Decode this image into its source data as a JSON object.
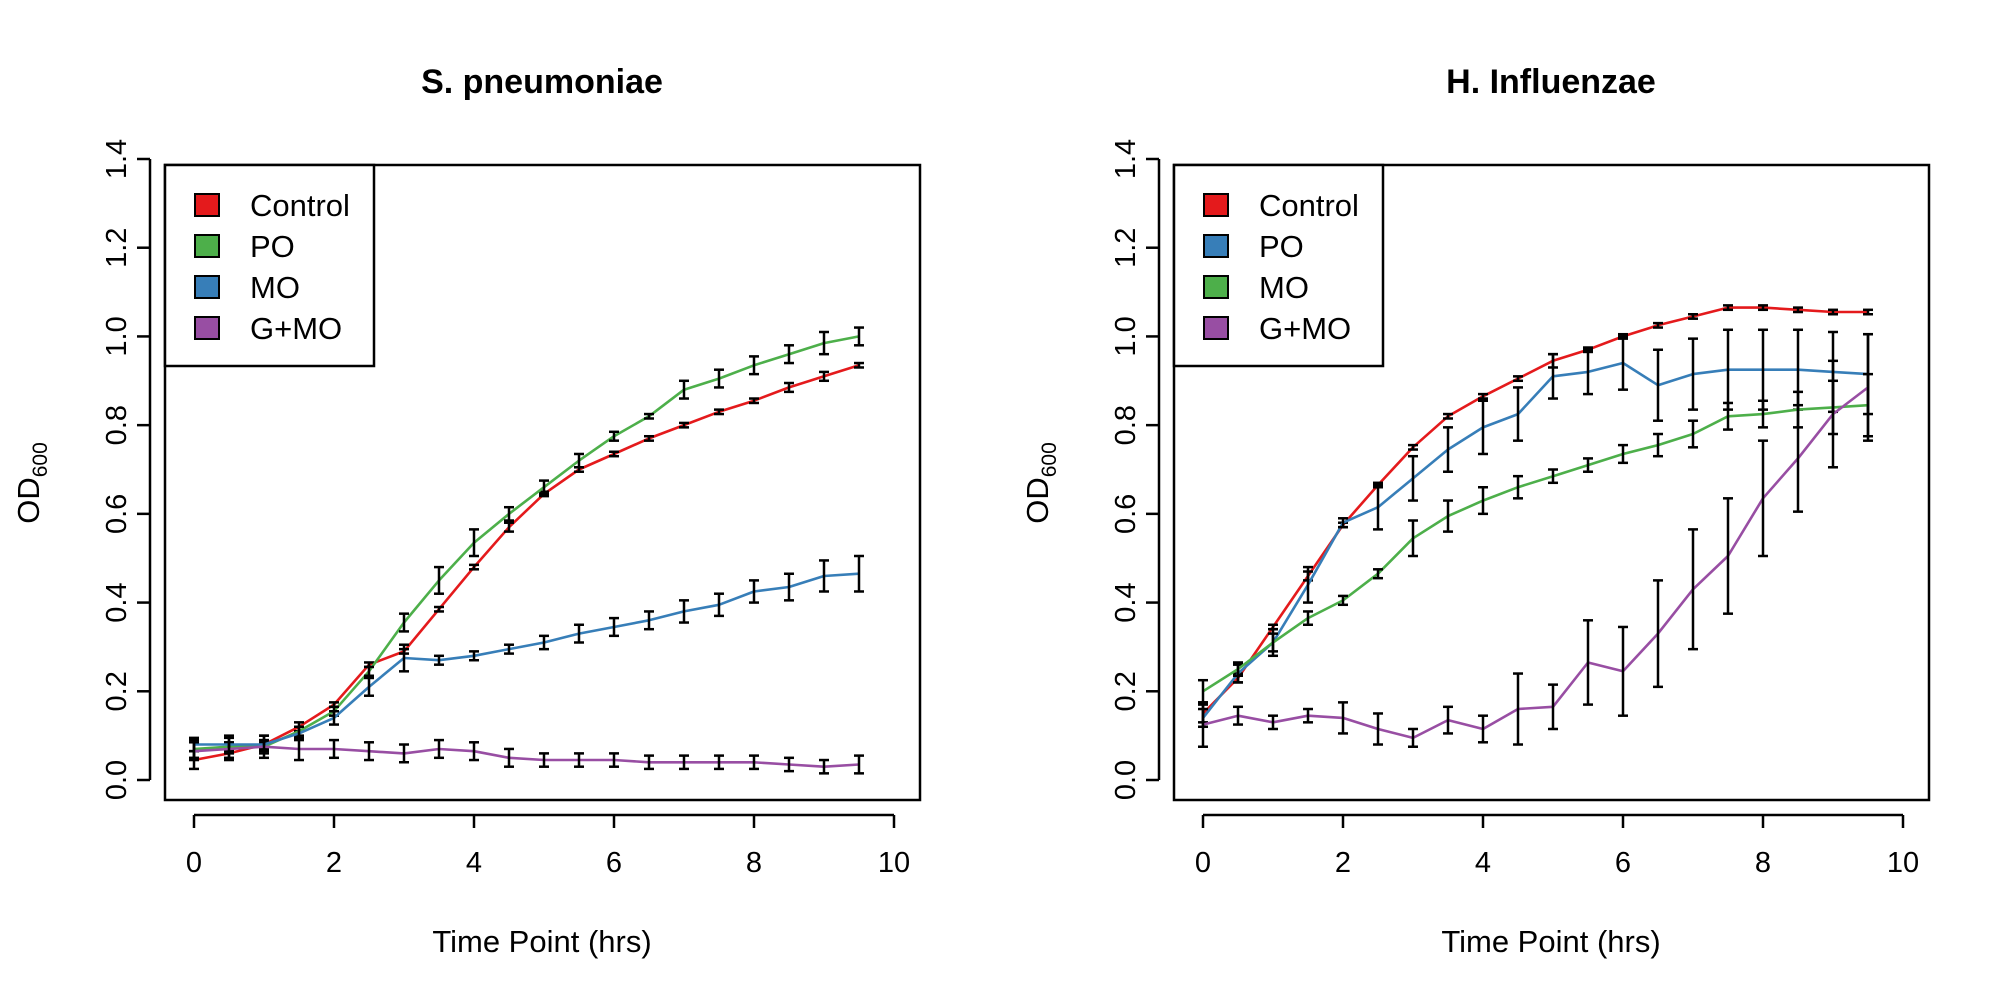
{
  "chart_data": [
    {
      "type": "line",
      "title": "S. pneumoniae",
      "xlabel": "Time Point (hrs)",
      "ylabel": "OD",
      "ylabel_sub": "600",
      "xlim": [
        0,
        10
      ],
      "ylim": [
        0,
        1.4
      ],
      "xticks": [
        "0",
        "2",
        "4",
        "6",
        "8",
        "10"
      ],
      "yticks": [
        "0.0",
        "0.2",
        "0.4",
        "0.6",
        "0.8",
        "1.0",
        "1.2",
        "1.4"
      ],
      "grid": false,
      "legend_position": "top-left",
      "x": [
        0,
        0.5,
        1,
        1.5,
        2,
        2.5,
        3,
        3.5,
        4,
        4.5,
        5,
        5.5,
        6,
        6.5,
        7,
        7.5,
        8,
        8.5,
        9,
        9.5
      ],
      "series": [
        {
          "name": "Control",
          "color": "#E41A1C",
          "values": [
            0.045,
            0.06,
            0.08,
            0.12,
            0.17,
            0.26,
            0.29,
            0.385,
            0.48,
            0.57,
            0.645,
            0.7,
            0.735,
            0.77,
            0.8,
            0.83,
            0.855,
            0.885,
            0.91,
            0.935
          ],
          "errors": [
            0.02,
            0.01,
            0.01,
            0.01,
            0.005,
            0.005,
            0.005,
            0.005,
            0.005,
            0.01,
            0.005,
            0.005,
            0.005,
            0.005,
            0.005,
            0.005,
            0.005,
            0.01,
            0.01,
            0.005
          ]
        },
        {
          "name": "PO",
          "color": "#4DAF4A",
          "values": [
            0.07,
            0.075,
            0.075,
            0.11,
            0.155,
            0.245,
            0.355,
            0.45,
            0.535,
            0.6,
            0.66,
            0.72,
            0.775,
            0.82,
            0.88,
            0.905,
            0.935,
            0.96,
            0.985,
            1.0
          ],
          "errors": [
            0.02,
            0.01,
            0.01,
            0.01,
            0.01,
            0.01,
            0.02,
            0.03,
            0.03,
            0.015,
            0.015,
            0.015,
            0.01,
            0.005,
            0.02,
            0.02,
            0.02,
            0.02,
            0.025,
            0.02
          ]
        },
        {
          "name": "MO",
          "color": "#377EB8",
          "values": [
            0.08,
            0.08,
            0.08,
            0.105,
            0.14,
            0.21,
            0.275,
            0.27,
            0.28,
            0.295,
            0.31,
            0.33,
            0.345,
            0.36,
            0.38,
            0.395,
            0.425,
            0.435,
            0.46,
            0.465
          ],
          "errors": [
            0.015,
            0.02,
            0.02,
            0.015,
            0.015,
            0.02,
            0.03,
            0.01,
            0.01,
            0.01,
            0.015,
            0.02,
            0.02,
            0.02,
            0.025,
            0.025,
            0.025,
            0.03,
            0.035,
            0.04
          ]
        },
        {
          "name": "G+MO",
          "color": "#984EA3",
          "values": [
            0.065,
            0.07,
            0.075,
            0.07,
            0.07,
            0.065,
            0.06,
            0.07,
            0.065,
            0.05,
            0.045,
            0.045,
            0.045,
            0.04,
            0.04,
            0.04,
            0.04,
            0.035,
            0.03,
            0.035
          ],
          "errors": [
            0.02,
            0.025,
            0.025,
            0.025,
            0.02,
            0.02,
            0.02,
            0.02,
            0.02,
            0.02,
            0.015,
            0.015,
            0.015,
            0.015,
            0.015,
            0.015,
            0.015,
            0.015,
            0.015,
            0.02
          ]
        }
      ]
    },
    {
      "type": "line",
      "title": "H. Influenzae",
      "xlabel": "Time Point (hrs)",
      "ylabel": "OD",
      "ylabel_sub": "600",
      "xlim": [
        0,
        10
      ],
      "ylim": [
        0,
        1.4
      ],
      "xticks": [
        "0",
        "2",
        "4",
        "6",
        "8",
        "10"
      ],
      "yticks": [
        "0.0",
        "0.2",
        "0.4",
        "0.6",
        "0.8",
        "1.0",
        "1.2",
        "1.4"
      ],
      "grid": false,
      "legend_position": "top-left",
      "x": [
        0,
        0.5,
        1,
        1.5,
        2,
        2.5,
        3,
        3.5,
        4,
        4.5,
        5,
        5.5,
        6,
        6.5,
        7,
        7.5,
        8,
        8.5,
        9,
        9.5
      ],
      "series": [
        {
          "name": "Control",
          "color": "#E41A1C",
          "values": [
            0.15,
            0.23,
            0.345,
            0.46,
            0.575,
            0.665,
            0.75,
            0.82,
            0.865,
            0.905,
            0.945,
            0.97,
            1.0,
            1.025,
            1.045,
            1.065,
            1.065,
            1.06,
            1.055,
            1.055
          ],
          "errors": [
            0.02,
            0.01,
            0.005,
            0.01,
            0.005,
            0.005,
            0.005,
            0.005,
            0.005,
            0.005,
            0.015,
            0.005,
            0.005,
            0.005,
            0.005,
            0.005,
            0.005,
            0.005,
            0.005,
            0.005
          ]
        },
        {
          "name": "PO",
          "color": "#377EB8",
          "values": [
            0.14,
            0.24,
            0.31,
            0.44,
            0.58,
            0.615,
            0.68,
            0.745,
            0.795,
            0.825,
            0.91,
            0.92,
            0.94,
            0.89,
            0.915,
            0.925,
            0.925,
            0.925,
            0.92,
            0.915
          ],
          "errors": [
            0.02,
            0.02,
            0.03,
            0.04,
            0.01,
            0.05,
            0.05,
            0.05,
            0.06,
            0.06,
            0.05,
            0.05,
            0.06,
            0.08,
            0.08,
            0.09,
            0.09,
            0.09,
            0.09,
            0.09
          ]
        },
        {
          "name": "MO",
          "color": "#4DAF4A",
          "values": [
            0.2,
            0.25,
            0.31,
            0.365,
            0.405,
            0.465,
            0.545,
            0.595,
            0.63,
            0.66,
            0.685,
            0.71,
            0.735,
            0.755,
            0.78,
            0.82,
            0.825,
            0.835,
            0.84,
            0.845
          ],
          "errors": [
            0.025,
            0.015,
            0.02,
            0.015,
            0.01,
            0.01,
            0.04,
            0.035,
            0.03,
            0.025,
            0.015,
            0.015,
            0.02,
            0.025,
            0.03,
            0.03,
            0.03,
            0.04,
            0.06,
            0.07
          ]
        },
        {
          "name": "G+MO",
          "color": "#984EA3",
          "values": [
            0.125,
            0.145,
            0.13,
            0.145,
            0.14,
            0.115,
            0.095,
            0.135,
            0.115,
            0.16,
            0.165,
            0.265,
            0.245,
            0.33,
            0.43,
            0.505,
            0.635,
            0.725,
            0.825,
            0.885
          ],
          "errors": [
            0.05,
            0.02,
            0.015,
            0.015,
            0.035,
            0.035,
            0.02,
            0.03,
            0.03,
            0.08,
            0.05,
            0.095,
            0.1,
            0.12,
            0.135,
            0.13,
            0.13,
            0.12,
            0.12,
            0.12
          ]
        }
      ]
    }
  ]
}
